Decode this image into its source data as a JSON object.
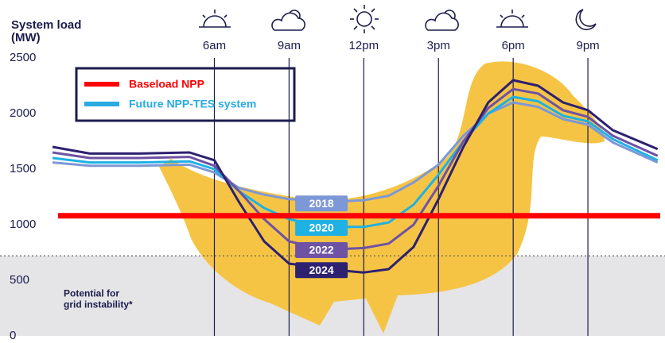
{
  "chart_data": {
    "type": "line",
    "y_label_lines": [
      "System load",
      "(MW)"
    ],
    "x": [
      -0.5,
      1,
      3,
      5,
      6,
      7,
      8,
      9,
      10,
      11,
      12,
      13,
      14,
      15,
      16,
      17,
      18,
      19,
      20,
      21,
      22,
      23.8
    ],
    "series": [
      {
        "name": "2018",
        "color": "#7d98d6",
        "values": [
          1560,
          1530,
          1530,
          1540,
          1470,
          1330,
          1270,
          1230,
          1220,
          1210,
          1220,
          1260,
          1380,
          1540,
          1800,
          2000,
          2100,
          2060,
          1950,
          1900,
          1740,
          1560
        ]
      },
      {
        "name": "2020",
        "color": "#1fb1e3",
        "values": [
          1600,
          1560,
          1560,
          1570,
          1500,
          1300,
          1150,
          1050,
          1000,
          980,
          980,
          1020,
          1180,
          1450,
          1750,
          2000,
          2150,
          2110,
          1980,
          1930,
          1770,
          1580
        ]
      },
      {
        "name": "2022",
        "color": "#6e52a3",
        "values": [
          1650,
          1600,
          1600,
          1610,
          1530,
          1300,
          1050,
          850,
          800,
          780,
          790,
          830,
          1000,
          1350,
          1750,
          2050,
          2220,
          2180,
          2030,
          1970,
          1800,
          1620
        ]
      },
      {
        "name": "2024",
        "color": "#2d2170",
        "values": [
          1700,
          1640,
          1640,
          1650,
          1580,
          1200,
          850,
          650,
          620,
          590,
          570,
          600,
          800,
          1230,
          1700,
          2100,
          2300,
          2250,
          2100,
          2030,
          1850,
          1680
        ]
      }
    ],
    "baseload": 1080,
    "baseload_color": "#ff0000",
    "threshold": 720,
    "threshold_label_lines": [
      "Potential for",
      "grid instability*"
    ],
    "legend": [
      {
        "name": "Baseload NPP",
        "color": "#ff0000"
      },
      {
        "name": "Future NPP-TES system",
        "color": "#29abe2"
      }
    ],
    "xlim": [
      -0.5,
      24
    ],
    "xticks": [
      {
        "value": 6,
        "label": "6am"
      },
      {
        "value": 9,
        "label": "9am"
      },
      {
        "value": 12,
        "label": "12pm"
      },
      {
        "value": 15,
        "label": "3pm"
      },
      {
        "value": 18,
        "label": "6pm"
      },
      {
        "value": 21,
        "label": "9pm"
      }
    ],
    "ylim": [
      0,
      2500
    ],
    "yticks": [
      0,
      500,
      1000,
      1500,
      2000,
      2500
    ]
  }
}
